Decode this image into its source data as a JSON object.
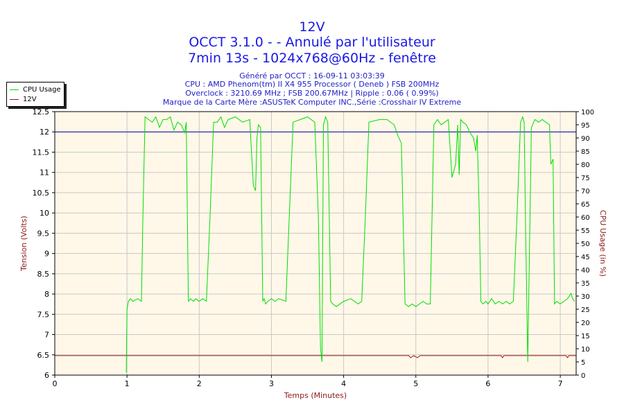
{
  "header": {
    "title_line1": "12V",
    "title_line2": "OCCT 3.1.0 -  - Annulé par l'utilisateur",
    "title_line3": "7min 13s - 1024x768@60Hz - fenêtre",
    "info_generated": "Généré par OCCT : 16-09-11 03:03:39",
    "info_cpu": "CPU : AMD Phenom(tm) II X4 955 Processor ( Deneb ) FSB 200MHz",
    "info_overclock": "Overclock : 3210.69 MHz ; FSB 200.67MHz | Ripple : 0.06 ( 0.99%)",
    "info_motherboard": "Marque de la Carte Mère :ASUSTeK Computer INC.,Série :Crosshair IV Extreme"
  },
  "legend": {
    "items": [
      {
        "label": "CPU Usage",
        "color": "#00dd00"
      },
      {
        "label": "12V",
        "color": "#a01010"
      }
    ]
  },
  "chart_data": {
    "type": "line",
    "xlabel": "Temps (Minutes)",
    "ylabel": "Tension (Volts)",
    "y2label": "CPU Usage (in %)",
    "xlim": [
      0,
      7.22
    ],
    "ylim": [
      6,
      12.5
    ],
    "y2lim": [
      0,
      100
    ],
    "x_ticks": [
      "0",
      "1",
      "2",
      "3",
      "4",
      "5",
      "6",
      "7"
    ],
    "y_ticks": [
      "6",
      "6.5",
      "7",
      "7.5",
      "8",
      "8.5",
      "9",
      "9.5",
      "10",
      "10.5",
      "11",
      "11.5",
      "12",
      "12.5"
    ],
    "y2_ticks": [
      "0",
      "5",
      "10",
      "15",
      "20",
      "25",
      "30",
      "35",
      "40",
      "45",
      "50",
      "55",
      "60",
      "65",
      "70",
      "75",
      "80",
      "85",
      "90",
      "95",
      "100"
    ],
    "grid": true,
    "reference_line": {
      "value": 12,
      "color": "#0000a0"
    },
    "colors": {
      "background": "#fff8e8",
      "grid": "#c8c8c8"
    },
    "series": [
      {
        "name": "12V",
        "color": "#a01010",
        "axis": "left",
        "x": [
          0,
          4.9,
          4.93,
          4.97,
          5.02,
          5.06,
          5.1,
          6.18,
          6.2,
          6.22,
          7.08,
          7.1,
          7.12,
          7.22
        ],
        "y": [
          6.48,
          6.48,
          6.43,
          6.48,
          6.43,
          6.48,
          6.48,
          6.48,
          6.43,
          6.48,
          6.48,
          6.43,
          6.48,
          6.48
        ]
      },
      {
        "name": "CPU Usage",
        "color": "#00dd00",
        "axis": "right",
        "x": [
          0.99,
          1.0,
          1.02,
          1.05,
          1.08,
          1.15,
          1.2,
          1.22,
          1.25,
          1.3,
          1.35,
          1.4,
          1.45,
          1.5,
          1.55,
          1.6,
          1.65,
          1.7,
          1.75,
          1.8,
          1.82,
          1.85,
          1.88,
          1.92,
          1.95,
          2.0,
          2.05,
          2.1,
          2.15,
          2.2,
          2.25,
          2.3,
          2.35,
          2.4,
          2.5,
          2.6,
          2.7,
          2.75,
          2.78,
          2.8,
          2.82,
          2.85,
          2.88,
          2.9,
          2.92,
          2.95,
          3.0,
          3.05,
          3.1,
          3.2,
          3.3,
          3.4,
          3.5,
          3.6,
          3.65,
          3.68,
          3.7,
          3.72,
          3.75,
          3.78,
          3.82,
          3.85,
          3.9,
          4.0,
          4.1,
          4.2,
          4.25,
          4.3,
          4.35,
          4.5,
          4.6,
          4.7,
          4.75,
          4.8,
          4.85,
          4.9,
          4.95,
          5.0,
          5.05,
          5.1,
          5.15,
          5.2,
          5.25,
          5.3,
          5.35,
          5.4,
          5.45,
          5.5,
          5.55,
          5.58,
          5.6,
          5.62,
          5.65,
          5.7,
          5.75,
          5.8,
          5.83,
          5.85,
          5.88,
          5.9,
          5.93,
          5.97,
          6.0,
          6.05,
          6.1,
          6.15,
          6.2,
          6.25,
          6.3,
          6.35,
          6.4,
          6.45,
          6.48,
          6.5,
          6.52,
          6.55,
          6.6,
          6.65,
          6.7,
          6.75,
          6.8,
          6.85,
          6.87,
          6.9,
          6.92,
          6.95,
          7.0,
          7.05,
          7.1,
          7.15,
          7.17,
          7.2
        ],
        "y": [
          1,
          25,
          28,
          29,
          28,
          29,
          28,
          60,
          98,
          97,
          96,
          98,
          94,
          97,
          97,
          98,
          93,
          96,
          95,
          92,
          96,
          28,
          29,
          28,
          29,
          28,
          29,
          28,
          60,
          96,
          96,
          98,
          94,
          97,
          98,
          96,
          97,
          72,
          70,
          90,
          95,
          94,
          28,
          29,
          27,
          28,
          29,
          28,
          29,
          28,
          96,
          97,
          98,
          96,
          60,
          10,
          5,
          95,
          98,
          96,
          28,
          27,
          26,
          28,
          29,
          27,
          28,
          60,
          96,
          97,
          97,
          95,
          91,
          88,
          27,
          26,
          27,
          26,
          27,
          28,
          27,
          27,
          95,
          97,
          95,
          96,
          97,
          75,
          80,
          95,
          76,
          97,
          96,
          95,
          92,
          90,
          85,
          91,
          60,
          28,
          27,
          28,
          27,
          29,
          27,
          28,
          27,
          28,
          27,
          28,
          60,
          96,
          98,
          96,
          55,
          5,
          94,
          97,
          96,
          97,
          96,
          95,
          80,
          82,
          27,
          28,
          27,
          28,
          29,
          31,
          29,
          28
        ]
      }
    ]
  }
}
